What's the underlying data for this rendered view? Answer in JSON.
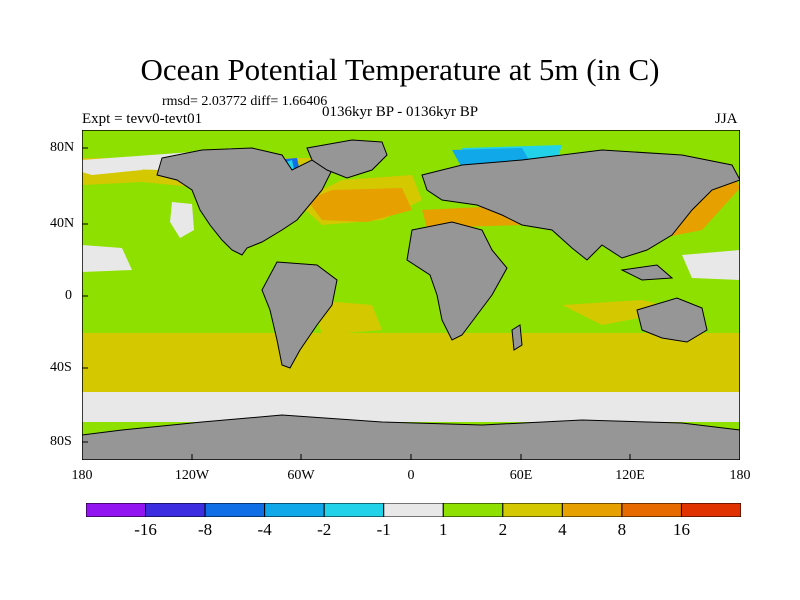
{
  "title": "Ocean Potential Temperature at 5m (in C)",
  "stats": "rmsd= 2.03772 diff= 1.66406",
  "experiment": "Expt = tevv0-tevt01",
  "period": "0136kyr BP - 0136kyr BP",
  "season": "JJA",
  "lat_ticks": [
    "80N",
    "40N",
    "0",
    "40S",
    "80S"
  ],
  "lon_ticks": [
    "180",
    "120W",
    "60W",
    "0",
    "60E",
    "120E",
    "180"
  ],
  "colorbar": {
    "labels": [
      "-16",
      "-8",
      "-4",
      "-2",
      "-1",
      "1",
      "2",
      "4",
      "8",
      "16"
    ],
    "colors": [
      "#9214f0",
      "#3c2ee0",
      "#0f6ee6",
      "#10a8e8",
      "#22d2e8",
      "#e8e8e8",
      "#8ee000",
      "#d4c800",
      "#e6a000",
      "#e66a00",
      "#e03200"
    ]
  },
  "colors": {
    "land": "#969696",
    "ocean_base": "#8ee000",
    "band_2_4": "#d4c800",
    "band_4_8": "#e6a000",
    "band_neg": "#e8e8e8",
    "band_cyan": "#22d2e8",
    "band_blue": "#0f6ee6"
  }
}
